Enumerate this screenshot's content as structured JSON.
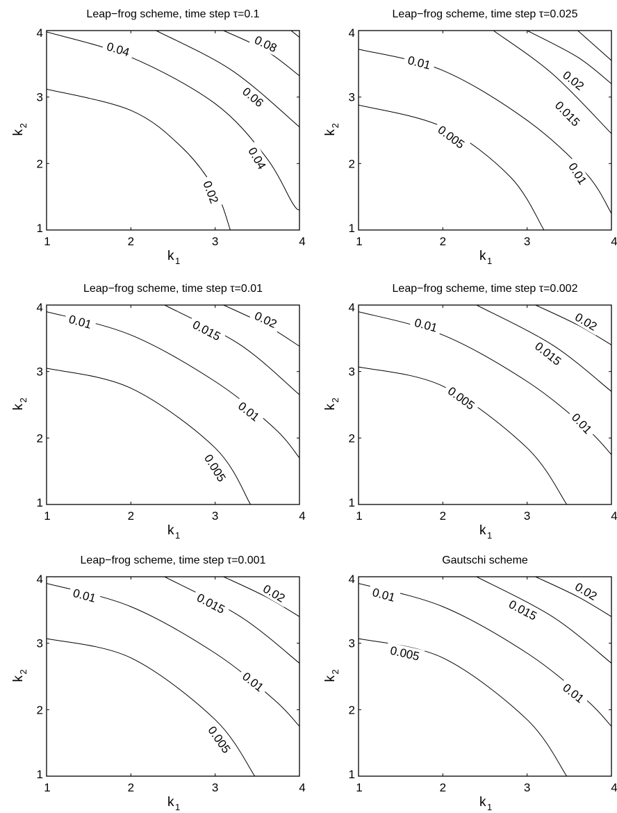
{
  "chart_data": [
    {
      "type": "contour",
      "title": "Leap−frog scheme, time step τ=0.1",
      "xlabel": "k",
      "xlabel_sub": "1",
      "ylabel": "k",
      "ylabel_sub": "2",
      "xlim": [
        1,
        4
      ],
      "ylim": [
        1,
        4
      ],
      "xticks": [
        "1",
        "2",
        "3",
        "4"
      ],
      "yticks": [
        "1",
        "2",
        "3",
        "4"
      ],
      "contours": [
        {
          "label": "0.02",
          "points": [
            [
              1,
              3.12
            ],
            [
              2,
              2.8
            ],
            [
              2.6,
              2.25
            ],
            [
              3.0,
              1.6
            ],
            [
              3.18,
              1.0
            ]
          ]
        },
        {
          "label": "0.04",
          "points": [
            [
              1,
              3.98
            ],
            [
              2,
              3.6
            ],
            [
              3,
              2.9
            ],
            [
              3.6,
              2.1
            ],
            [
              3.92,
              1.4
            ],
            [
              4,
              1.3
            ]
          ]
        },
        {
          "label": "0.06",
          "points": [
            [
              2.3,
              4.0
            ],
            [
              3.2,
              3.4
            ],
            [
              4,
              2.55
            ]
          ]
        },
        {
          "label": "0.08",
          "points": [
            [
              3.1,
              4.0
            ],
            [
              3.6,
              3.7
            ],
            [
              4,
              3.32
            ]
          ]
        },
        {
          "label": "",
          "points": [
            [
              3.9,
              4.0
            ],
            [
              4,
              3.9
            ]
          ]
        }
      ],
      "contour_labels": [
        {
          "text": "0.04",
          "at": [
            1.85,
            3.72
          ]
        },
        {
          "text": "0.08",
          "at": [
            3.6,
            3.8
          ]
        },
        {
          "text": "0.06",
          "at": [
            3.45,
            3.0
          ]
        },
        {
          "text": "0.04",
          "at": [
            3.5,
            2.08
          ]
        },
        {
          "text": "0.02",
          "at": [
            2.95,
            1.57
          ]
        }
      ]
    },
    {
      "type": "contour",
      "title": "Leap−frog scheme, time step τ=0.025",
      "xlabel": "k",
      "xlabel_sub": "1",
      "ylabel": "k",
      "ylabel_sub": "2",
      "xlim": [
        1,
        4
      ],
      "ylim": [
        1,
        4
      ],
      "xticks": [
        "1",
        "2",
        "3",
        "4"
      ],
      "yticks": [
        "1",
        "2",
        "3",
        "4"
      ],
      "contours": [
        {
          "label": "0.005",
          "points": [
            [
              1,
              2.88
            ],
            [
              2,
              2.55
            ],
            [
              2.8,
              1.8
            ],
            [
              3.2,
              1.0
            ]
          ]
        },
        {
          "label": "0.01",
          "points": [
            [
              1,
              3.72
            ],
            [
              2,
              3.4
            ],
            [
              3,
              2.65
            ],
            [
              3.7,
              1.85
            ],
            [
              4,
              1.25
            ]
          ]
        },
        {
          "label": "0.015",
          "points": [
            [
              2.6,
              4.0
            ],
            [
              3.3,
              3.35
            ],
            [
              4,
              2.45
            ]
          ]
        },
        {
          "label": "0.02",
          "points": [
            [
              3.0,
              4.0
            ],
            [
              3.6,
              3.6
            ],
            [
              4,
              3.2
            ]
          ]
        },
        {
          "label": "",
          "points": [
            [
              3.6,
              4.0
            ],
            [
              4,
              3.55
            ]
          ]
        }
      ],
      "contour_labels": [
        {
          "text": "0.01",
          "at": [
            1.72,
            3.52
          ]
        },
        {
          "text": "0.02",
          "at": [
            3.55,
            3.25
          ]
        },
        {
          "text": "0.015",
          "at": [
            3.48,
            2.75
          ]
        },
        {
          "text": "0.005",
          "at": [
            2.1,
            2.4
          ]
        },
        {
          "text": "0.01",
          "at": [
            3.6,
            1.85
          ]
        }
      ]
    },
    {
      "type": "contour",
      "title": "Leap−frog scheme, time step τ=0.01",
      "xlabel": "k",
      "xlabel_sub": "1",
      "ylabel": "k",
      "ylabel_sub": "2",
      "xlim": [
        1,
        4
      ],
      "ylim": [
        1,
        4
      ],
      "xticks": [
        "1",
        "2",
        "3",
        "4"
      ],
      "yticks": [
        "1",
        "2",
        "3",
        "4"
      ],
      "contours": [
        {
          "label": "0.005",
          "points": [
            [
              1,
              3.05
            ],
            [
              2,
              2.75
            ],
            [
              3,
              1.85
            ],
            [
              3.42,
              1.0
            ]
          ]
        },
        {
          "label": "0.01",
          "points": [
            [
              1,
              3.9
            ],
            [
              2,
              3.55
            ],
            [
              3,
              2.85
            ],
            [
              3.7,
              2.15
            ],
            [
              4,
              1.7
            ]
          ]
        },
        {
          "label": "0.015",
          "points": [
            [
              2.4,
              4.0
            ],
            [
              3.3,
              3.4
            ],
            [
              4,
              2.65
            ]
          ]
        },
        {
          "label": "0.02",
          "points": [
            [
              3.1,
              4.0
            ],
            [
              3.6,
              3.7
            ],
            [
              4,
              3.38
            ]
          ]
        }
      ],
      "contour_labels": [
        {
          "text": "0.01",
          "at": [
            1.4,
            3.75
          ]
        },
        {
          "text": "0.015",
          "at": [
            2.9,
            3.62
          ]
        },
        {
          "text": "0.02",
          "at": [
            3.6,
            3.78
          ]
        },
        {
          "text": "0.01",
          "at": [
            3.4,
            2.4
          ]
        },
        {
          "text": "0.005",
          "at": [
            3.0,
            1.55
          ]
        }
      ]
    },
    {
      "type": "contour",
      "title": "Leap−frog scheme, time step τ=0.002",
      "xlabel": "k",
      "xlabel_sub": "1",
      "ylabel": "k",
      "ylabel_sub": "2",
      "xlim": [
        1,
        4
      ],
      "ylim": [
        1,
        4
      ],
      "xticks": [
        "1",
        "2",
        "3",
        "4"
      ],
      "yticks": [
        "1",
        "2",
        "3",
        "4"
      ],
      "contours": [
        {
          "label": "0.005",
          "points": [
            [
              1,
              3.07
            ],
            [
              2,
              2.78
            ],
            [
              3,
              1.85
            ],
            [
              3.47,
              1.0
            ]
          ]
        },
        {
          "label": "0.01",
          "points": [
            [
              1,
              3.9
            ],
            [
              2,
              3.55
            ],
            [
              3,
              2.85
            ],
            [
              3.7,
              2.15
            ],
            [
              4,
              1.75
            ]
          ]
        },
        {
          "label": "0.015",
          "points": [
            [
              2.4,
              4.0
            ],
            [
              3.3,
              3.4
            ],
            [
              4,
              2.7
            ]
          ]
        },
        {
          "label": "0.02",
          "points": [
            [
              3.1,
              4.0
            ],
            [
              3.6,
              3.7
            ],
            [
              4,
              3.4
            ]
          ]
        }
      ],
      "contour_labels": [
        {
          "text": "0.01",
          "at": [
            1.8,
            3.7
          ]
        },
        {
          "text": "0.015",
          "at": [
            3.25,
            3.27
          ]
        },
        {
          "text": "0.02",
          "at": [
            3.7,
            3.75
          ]
        },
        {
          "text": "0.005",
          "at": [
            2.22,
            2.6
          ]
        },
        {
          "text": "0.01",
          "at": [
            3.65,
            2.22
          ]
        }
      ]
    },
    {
      "type": "contour",
      "title": "Leap−frog scheme, time step τ=0.001",
      "xlabel": "k",
      "xlabel_sub": "1",
      "ylabel": "k",
      "ylabel_sub": "2",
      "xlim": [
        1,
        4
      ],
      "ylim": [
        1,
        4
      ],
      "xticks": [
        "1",
        "2",
        "3",
        "4"
      ],
      "yticks": [
        "1",
        "2",
        "3",
        "4"
      ],
      "contours": [
        {
          "label": "0.005",
          "points": [
            [
              1,
              3.07
            ],
            [
              2,
              2.78
            ],
            [
              3,
              1.85
            ],
            [
              3.47,
              1.0
            ]
          ]
        },
        {
          "label": "0.01",
          "points": [
            [
              1,
              3.9
            ],
            [
              2,
              3.55
            ],
            [
              3,
              2.85
            ],
            [
              3.7,
              2.15
            ],
            [
              4,
              1.75
            ]
          ]
        },
        {
          "label": "0.015",
          "points": [
            [
              2.4,
              4.0
            ],
            [
              3.3,
              3.4
            ],
            [
              4,
              2.7
            ]
          ]
        },
        {
          "label": "0.02",
          "points": [
            [
              3.1,
              4.0
            ],
            [
              3.6,
              3.7
            ],
            [
              4,
              3.4
            ]
          ]
        }
      ],
      "contour_labels": [
        {
          "text": "0.01",
          "at": [
            1.45,
            3.72
          ]
        },
        {
          "text": "0.015",
          "at": [
            2.95,
            3.6
          ]
        },
        {
          "text": "0.02",
          "at": [
            3.7,
            3.75
          ]
        },
        {
          "text": "0.01",
          "at": [
            3.45,
            2.42
          ]
        },
        {
          "text": "0.005",
          "at": [
            3.05,
            1.55
          ]
        }
      ]
    },
    {
      "type": "contour",
      "title": "Gautschi scheme",
      "xlabel": "k",
      "xlabel_sub": "1",
      "ylabel": "k",
      "ylabel_sub": "2",
      "xlim": [
        1,
        4
      ],
      "ylim": [
        1,
        4
      ],
      "xticks": [
        "1",
        "2",
        "3",
        "4"
      ],
      "yticks": [
        "1",
        "2",
        "3",
        "4"
      ],
      "contours": [
        {
          "label": "0.005",
          "points": [
            [
              1,
              3.07
            ],
            [
              2,
              2.78
            ],
            [
              3,
              1.85
            ],
            [
              3.47,
              1.0
            ]
          ]
        },
        {
          "label": "0.01",
          "points": [
            [
              1,
              3.9
            ],
            [
              2,
              3.55
            ],
            [
              3,
              2.85
            ],
            [
              3.7,
              2.15
            ],
            [
              4,
              1.75
            ]
          ]
        },
        {
          "label": "0.015",
          "points": [
            [
              2.4,
              4.0
            ],
            [
              3.3,
              3.4
            ],
            [
              4,
              2.7
            ]
          ]
        },
        {
          "label": "0.02",
          "points": [
            [
              3.1,
              4.0
            ],
            [
              3.6,
              3.7
            ],
            [
              4,
              3.4
            ]
          ]
        }
      ],
      "contour_labels": [
        {
          "text": "0.01",
          "at": [
            1.3,
            3.73
          ]
        },
        {
          "text": "0.015",
          "at": [
            2.95,
            3.5
          ]
        },
        {
          "text": "0.02",
          "at": [
            3.7,
            3.78
          ]
        },
        {
          "text": "0.005",
          "at": [
            1.55,
            2.85
          ]
        },
        {
          "text": "0.01",
          "at": [
            3.55,
            2.25
          ]
        }
      ]
    }
  ]
}
